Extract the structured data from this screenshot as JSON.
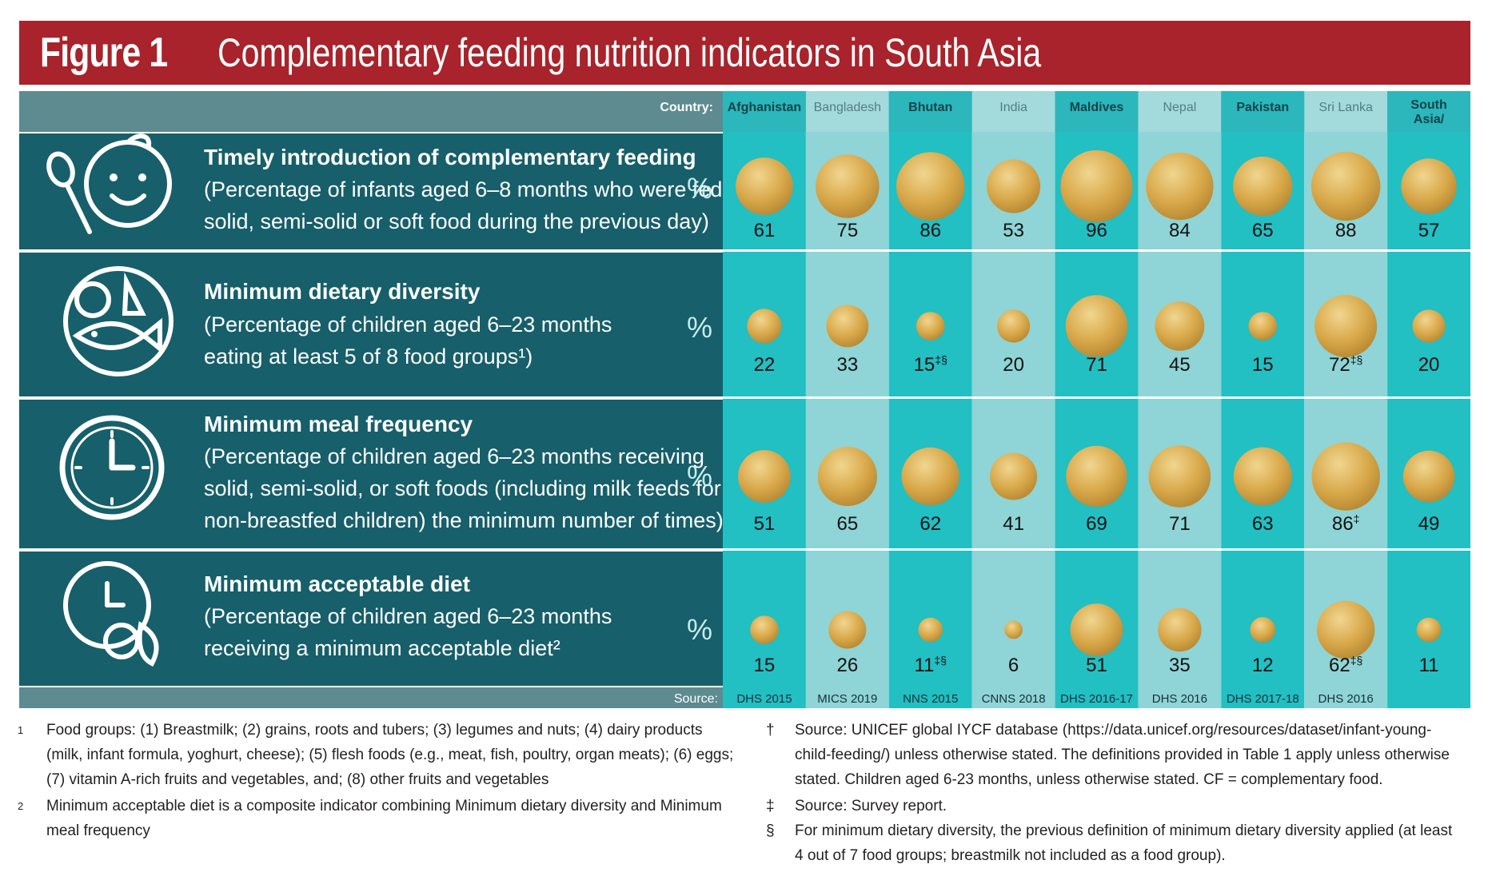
{
  "title": {
    "figure_label": "Figure 1",
    "text": "Complementary feeding nutrition indicators in South Asia"
  },
  "chart_data": {
    "type": "bubble-table",
    "title": "Complementary feeding nutrition indicators in South Asia",
    "country_label": "Country:",
    "source_label": "Source:",
    "unit": "%",
    "countries": [
      "Afghanistan",
      "Bangladesh",
      "Bhutan",
      "India",
      "Maldives",
      "Nepal",
      "Pakistan",
      "Sri Lanka",
      "South Asia/ Regional"
    ],
    "sources": [
      "DHS 2015",
      "MICS 2019",
      "NNS  2015",
      "CNNS 2018",
      "DHS 2016-17",
      "DHS 2016",
      "DHS 2017-18",
      "DHS 2016",
      ""
    ],
    "indicators": [
      {
        "name": "Timely introduction of complementary feeding",
        "description": [
          "(Percentage of infants aged 6–8 months who were fed",
          "solid, semi-solid or soft food during the previous day)"
        ],
        "icon": "baby-spoon-icon",
        "values": [
          61,
          75,
          86,
          53,
          96,
          84,
          65,
          88,
          57
        ],
        "marks": [
          "",
          "",
          "",
          "",
          "",
          "",
          "",
          "",
          ""
        ]
      },
      {
        "name": "Minimum dietary diversity",
        "description": [
          "(Percentage of children aged 6–23 months",
          "eating at least 5 of 8 food groups¹)"
        ],
        "icon": "food-groups-icon",
        "values": [
          22,
          33,
          15,
          20,
          71,
          45,
          15,
          72,
          20
        ],
        "marks": [
          "",
          "",
          "‡§",
          "",
          "",
          "",
          "",
          "‡§",
          ""
        ]
      },
      {
        "name": "Minimum meal frequency",
        "description": [
          "(Percentage of children aged 6–23 months receiving",
          "solid, semi-solid, or soft foods (including milk feeds for",
          "non-breastfed children) the minimum number of times)"
        ],
        "icon": "clock-icon",
        "values": [
          51,
          65,
          62,
          41,
          69,
          71,
          63,
          86,
          49
        ],
        "marks": [
          "",
          "",
          "",
          "",
          "",
          "",
          "",
          "‡",
          ""
        ]
      },
      {
        "name": "Minimum acceptable diet",
        "description": [
          "(Percentage of children aged 6–23 months",
          "receiving a minimum acceptable diet²"
        ],
        "icon": "clock-food-icon",
        "values": [
          15,
          26,
          11,
          6,
          51,
          35,
          12,
          62,
          11
        ],
        "marks": [
          "",
          "",
          "‡§",
          "",
          "",
          "",
          "",
          "‡§",
          ""
        ]
      }
    ]
  },
  "colors": {
    "title_bg": "#a8232b",
    "header_bg": "#5d8b90",
    "row_bg": "#175f6a",
    "col_dark": "#22bfc3",
    "col_light": "#8fd4d6",
    "bubble": "#d9a94b"
  },
  "footnotes": {
    "left": [
      {
        "mark": "1",
        "text": "Food groups: (1) Breastmilk; (2) grains, roots and tubers; (3) legumes and nuts; (4) dairy products (milk, infant formula, yoghurt, cheese); (5) flesh foods (e.g., meat, fish, poultry, organ meats); (6) eggs; (7) vitamin A-rich fruits and vegetables, and; (8) other fruits and vegetables"
      },
      {
        "mark": "2",
        "text": " Minimum acceptable diet is a composite indicator combining Minimum dietary diversity and Minimum meal frequency"
      }
    ],
    "right": [
      {
        "mark": "†",
        "text": "Source: UNICEF global IYCF database (https://data.unicef.org/resources/dataset/infant-young-child-feeding/) unless otherwise stated. The definitions provided in Table 1 apply unless otherwise stated. Children aged 6-23 months, unless otherwise stated. CF = complementary food."
      },
      {
        "mark": "‡",
        "text": "Source: Survey report."
      },
      {
        "mark": "§",
        "text": "For minimum dietary diversity, the previous definition of minimum dietary diversity applied (at least 4 out of 7 food groups; breastmilk not included as a food group)."
      }
    ]
  }
}
